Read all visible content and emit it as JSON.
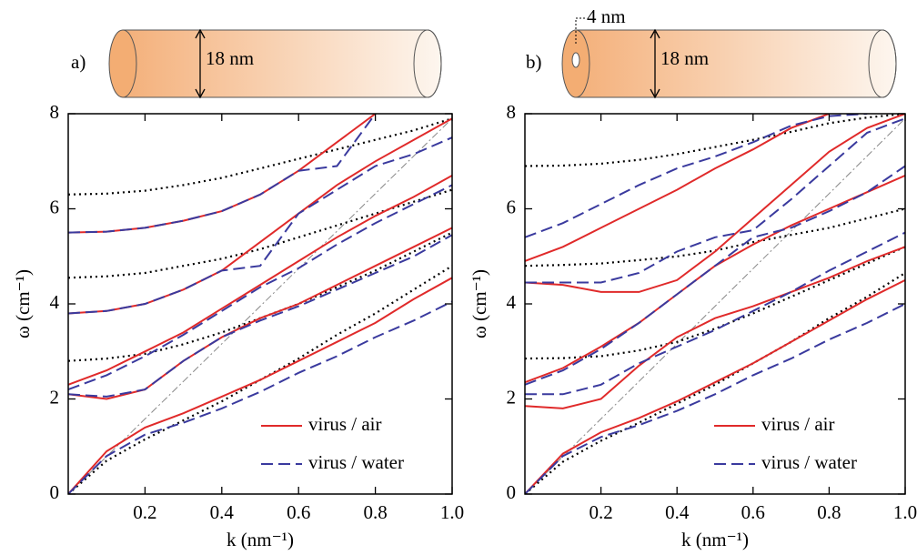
{
  "chart_data": [
    {
      "type": "line",
      "panel_label": "a)",
      "annotations": [
        "18 nm"
      ],
      "xlabel": "k (nm⁻¹)",
      "ylabel": "ω (cm⁻¹)",
      "xlim": [
        0,
        1
      ],
      "ylim": [
        0,
        8
      ],
      "xticks": [
        0.2,
        0.4,
        0.6,
        0.8,
        {
          "value": 1.0,
          "label": "1.0"
        }
      ],
      "yticks": [
        0,
        2,
        4,
        6,
        8
      ],
      "legend": "lower right",
      "x": [
        0,
        0.1,
        0.2,
        0.3,
        0.4,
        0.5,
        0.6,
        0.7,
        0.8,
        0.9,
        1.0
      ],
      "series": [
        {
          "color": "#888888",
          "style": "dashdot",
          "values": [
            0,
            0.79,
            1.58,
            2.37,
            3.16,
            3.95,
            4.74,
            5.53,
            6.32,
            7.11,
            7.9
          ]
        },
        {
          "color": "#000000",
          "style": "dotted",
          "values": [
            0,
            0.7,
            1.15,
            1.55,
            1.95,
            2.4,
            2.85,
            3.35,
            3.8,
            4.3,
            4.8
          ]
        },
        {
          "color": "#000000",
          "style": "dotted",
          "values": [
            2.8,
            2.85,
            2.95,
            3.15,
            3.4,
            3.7,
            4.0,
            4.35,
            4.7,
            5.1,
            5.5
          ]
        },
        {
          "color": "#000000",
          "style": "dotted",
          "values": [
            4.55,
            4.58,
            4.65,
            4.8,
            4.95,
            5.15,
            5.4,
            5.65,
            5.9,
            6.15,
            6.4
          ]
        },
        {
          "color": "#000000",
          "style": "dotted",
          "values": [
            6.3,
            6.32,
            6.38,
            6.5,
            6.65,
            6.85,
            7.05,
            7.25,
            7.45,
            7.65,
            7.9
          ]
        },
        {
          "name": "virus / air",
          "color": "#e02a2a",
          "style": "solid",
          "values": [
            0,
            0.9,
            1.4,
            1.7,
            2.05,
            2.4,
            2.8,
            3.2,
            3.6,
            4.1,
            4.55
          ]
        },
        {
          "color": "#e02a2a",
          "style": "solid",
          "values": [
            2.1,
            2.0,
            2.2,
            2.8,
            3.3,
            3.7,
            4.0,
            4.4,
            4.8,
            5.2,
            5.6
          ]
        },
        {
          "color": "#e02a2a",
          "style": "solid",
          "values": [
            2.3,
            2.6,
            3.0,
            3.4,
            3.9,
            4.4,
            4.9,
            5.4,
            5.85,
            6.25,
            6.7
          ]
        },
        {
          "color": "#e02a2a",
          "style": "solid",
          "values": [
            3.8,
            3.85,
            4.0,
            4.3,
            4.7,
            5.3,
            5.9,
            6.5,
            7.0,
            7.45,
            7.9
          ]
        },
        {
          "color": "#e02a2a",
          "style": "solid",
          "values": [
            5.5,
            5.52,
            5.6,
            5.75,
            5.95,
            6.3,
            6.8,
            7.4,
            8.0,
            null,
            null
          ]
        },
        {
          "name": "virus / water",
          "color": "#3a3a9e",
          "style": "dashed",
          "values": [
            0,
            0.8,
            1.25,
            1.5,
            1.8,
            2.15,
            2.55,
            2.9,
            3.3,
            3.65,
            4.05
          ]
        },
        {
          "color": "#3a3a9e",
          "style": "dashed",
          "values": [
            2.1,
            2.05,
            2.2,
            2.8,
            3.3,
            3.65,
            3.95,
            4.3,
            4.65,
            5.0,
            5.45
          ]
        },
        {
          "color": "#3a3a9e",
          "style": "dashed",
          "values": [
            2.2,
            2.5,
            2.9,
            3.35,
            3.85,
            4.35,
            4.75,
            5.25,
            5.7,
            6.1,
            6.5
          ]
        },
        {
          "color": "#3a3a9e",
          "style": "dashed",
          "values": [
            3.8,
            3.85,
            4.0,
            4.3,
            4.7,
            4.8,
            5.9,
            6.4,
            6.9,
            7.15,
            7.5
          ]
        },
        {
          "color": "#3a3a9e",
          "style": "dashed",
          "values": [
            5.5,
            5.52,
            5.6,
            5.75,
            5.95,
            6.3,
            6.8,
            6.9,
            8.0,
            null,
            null
          ]
        }
      ]
    },
    {
      "type": "line",
      "panel_label": "b)",
      "annotations": [
        "18 nm",
        "4 nm"
      ],
      "xlabel": "k (nm⁻¹)",
      "ylabel": "ω (cm⁻¹)",
      "xlim": [
        0,
        1
      ],
      "ylim": [
        0,
        8
      ],
      "xticks": [
        0.2,
        0.4,
        0.6,
        0.8,
        {
          "value": 1.0,
          "label": "1.0"
        }
      ],
      "yticks": [
        0,
        2,
        4,
        6,
        8
      ],
      "legend": "lower right",
      "x": [
        0,
        0.1,
        0.2,
        0.3,
        0.4,
        0.5,
        0.6,
        0.7,
        0.8,
        0.9,
        1.0
      ],
      "series": [
        {
          "color": "#888888",
          "style": "dashdot",
          "values": [
            0,
            0.79,
            1.58,
            2.37,
            3.16,
            3.95,
            4.74,
            5.53,
            6.32,
            7.11,
            7.9
          ]
        },
        {
          "color": "#000000",
          "style": "dotted",
          "values": [
            0,
            0.68,
            1.12,
            1.5,
            1.9,
            2.3,
            2.75,
            3.2,
            3.7,
            4.15,
            4.65
          ]
        },
        {
          "color": "#000000",
          "style": "dotted",
          "values": [
            2.85,
            2.86,
            2.9,
            3.02,
            3.2,
            3.48,
            3.8,
            4.15,
            4.5,
            4.85,
            5.2
          ]
        },
        {
          "color": "#000000",
          "style": "dotted",
          "values": [
            4.8,
            4.82,
            4.85,
            4.92,
            5.0,
            5.12,
            5.3,
            5.45,
            5.6,
            5.8,
            6.0
          ]
        },
        {
          "color": "#000000",
          "style": "dotted",
          "values": [
            6.9,
            6.91,
            6.95,
            7.03,
            7.15,
            7.3,
            7.45,
            7.62,
            7.8,
            7.92,
            8.0
          ]
        },
        {
          "name": "virus / air",
          "color": "#e02a2a",
          "style": "solid",
          "values": [
            0,
            0.85,
            1.3,
            1.6,
            1.95,
            2.35,
            2.75,
            3.2,
            3.65,
            4.1,
            4.5
          ]
        },
        {
          "color": "#e02a2a",
          "style": "solid",
          "values": [
            1.85,
            1.8,
            2.0,
            2.7,
            3.3,
            3.7,
            3.95,
            4.25,
            4.55,
            4.9,
            5.2
          ]
        },
        {
          "color": "#e02a2a",
          "style": "solid",
          "values": [
            2.35,
            2.65,
            3.1,
            3.6,
            4.2,
            4.8,
            5.25,
            5.65,
            6.0,
            6.35,
            6.7
          ]
        },
        {
          "color": "#e02a2a",
          "style": "solid",
          "values": [
            4.45,
            4.4,
            4.25,
            4.25,
            4.5,
            5.1,
            5.8,
            6.5,
            7.2,
            7.7,
            8.0
          ]
        },
        {
          "color": "#e02a2a",
          "style": "solid",
          "values": [
            4.9,
            5.2,
            5.6,
            6.0,
            6.4,
            6.85,
            7.25,
            7.7,
            8.0,
            null,
            null
          ]
        },
        {
          "name": "virus / water",
          "color": "#3a3a9e",
          "style": "dashed",
          "values": [
            0,
            0.8,
            1.2,
            1.45,
            1.75,
            2.1,
            2.5,
            2.85,
            3.25,
            3.6,
            4.0
          ]
        },
        {
          "color": "#3a3a9e",
          "style": "dashed",
          "values": [
            2.1,
            2.1,
            2.3,
            2.75,
            3.1,
            3.45,
            3.85,
            4.25,
            4.7,
            5.1,
            5.5
          ]
        },
        {
          "color": "#3a3a9e",
          "style": "dashed",
          "values": [
            2.3,
            2.6,
            3.05,
            3.6,
            4.2,
            4.8,
            5.4,
            5.6,
            5.95,
            6.35,
            6.9
          ]
        },
        {
          "color": "#3a3a9e",
          "style": "dashed",
          "values": [
            4.45,
            4.45,
            4.45,
            4.65,
            5.1,
            5.4,
            5.55,
            6.2,
            6.9,
            7.6,
            7.9
          ]
        },
        {
          "color": "#3a3a9e",
          "style": "dashed",
          "values": [
            5.4,
            5.7,
            6.1,
            6.5,
            6.85,
            7.1,
            7.4,
            7.75,
            7.95,
            8.0,
            null
          ]
        }
      ]
    }
  ]
}
